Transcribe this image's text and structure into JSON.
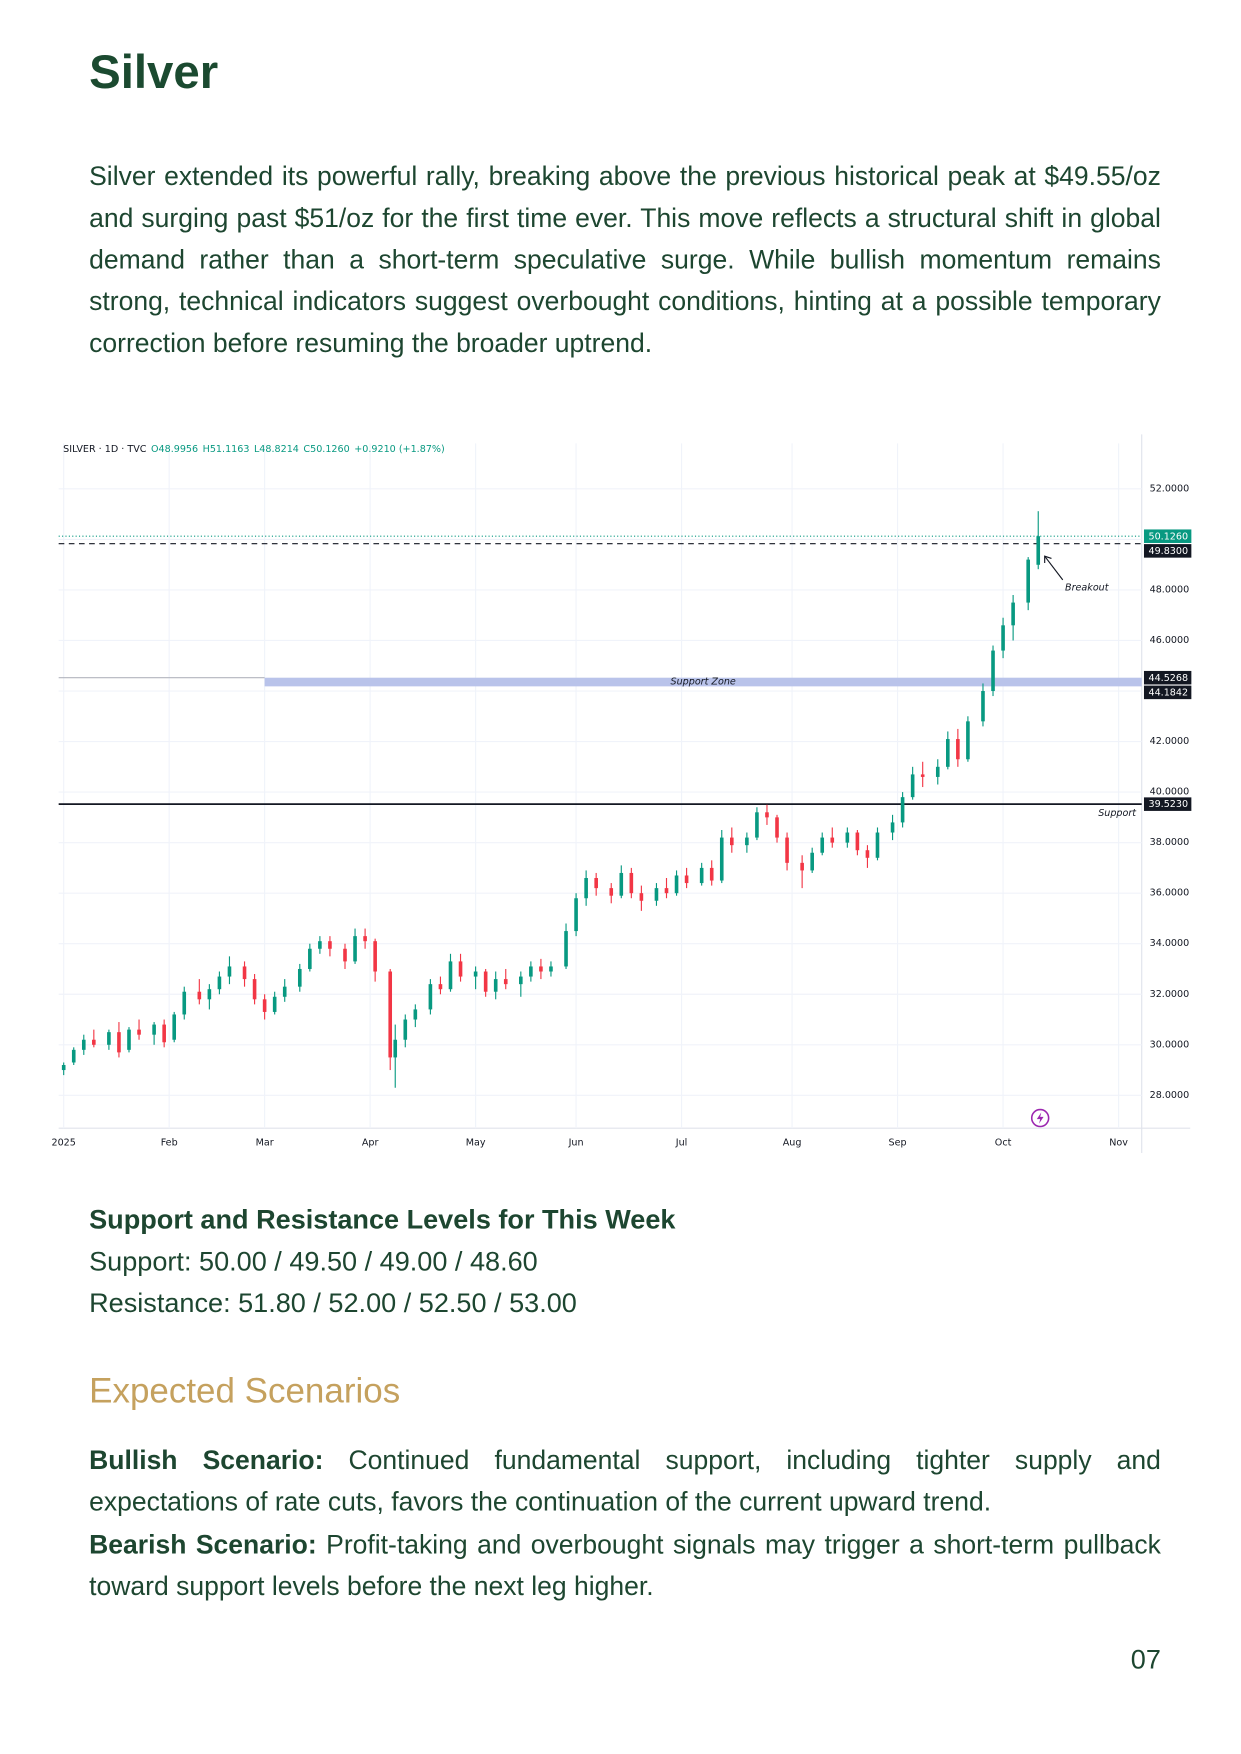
{
  "title": "Silver",
  "paragraph": "Silver extended its powerful rally, breaking above the previous historical peak at $49.55/oz and surging past $51/oz for the first time ever. This move reflects a structural shift in global demand rather than a short-term speculative surge. While bullish momentum remains strong, technical indicators suggest overbought conditions, hinting at a possible temporary correction before resuming the broader uptrend.",
  "chart_data": {
    "type": "candlestick",
    "symbol": "SILVER · 1D · TVC",
    "header_values": [
      "O48.9956",
      "H51.1163",
      "L48.8214",
      "C50.1260",
      "+0.9210 (+1.87%)"
    ],
    "up_color": "#089981",
    "down_color": "#f23645",
    "grid": true,
    "xlim": [
      -1,
      214.6
    ],
    "ylim": [
      26.7,
      53.8
    ],
    "xticks": [
      {
        "value": 0,
        "label": "2025"
      },
      {
        "value": 21,
        "label": "Feb"
      },
      {
        "value": 40,
        "label": "Mar"
      },
      {
        "value": 61,
        "label": "Apr"
      },
      {
        "value": 82,
        "label": "May"
      },
      {
        "value": 102,
        "label": "Jun"
      },
      {
        "value": 123,
        "label": "Jul"
      },
      {
        "value": 145,
        "label": "Aug"
      },
      {
        "value": 166,
        "label": "Sep"
      },
      {
        "value": 187,
        "label": "Oct"
      },
      {
        "value": 210,
        "label": "Nov"
      }
    ],
    "yticks": [
      {
        "value": 28,
        "label": "28.0000"
      },
      {
        "value": 30,
        "label": "30.0000"
      },
      {
        "value": 32,
        "label": "32.0000"
      },
      {
        "value": 34,
        "label": "34.0000"
      },
      {
        "value": 36,
        "label": "36.0000"
      },
      {
        "value": 38,
        "label": "38.0000"
      },
      {
        "value": 40,
        "label": "40.0000"
      },
      {
        "value": 42,
        "label": "42.0000"
      },
      {
        "value": 44,
        "label": "44.0000"
      },
      {
        "value": 46,
        "label": "46.0000"
      },
      {
        "value": 48,
        "label": "48.0000"
      },
      {
        "value": 50,
        "label": "50.0000"
      },
      {
        "value": 52,
        "label": "52.0000"
      }
    ],
    "x": [
      0,
      2,
      4,
      6,
      9,
      11,
      13,
      15,
      18,
      20,
      22,
      24,
      27,
      29,
      31,
      33,
      36,
      38,
      40,
      42,
      44,
      47,
      49,
      51,
      53,
      56,
      58,
      60,
      62,
      65,
      66,
      68,
      70,
      73,
      75,
      77,
      79,
      82,
      84,
      86,
      88,
      91,
      93,
      95,
      97,
      100,
      102,
      104,
      106,
      109,
      111,
      113,
      115,
      118,
      120,
      122,
      124,
      127,
      129,
      131,
      133,
      136,
      138,
      140,
      142,
      144,
      147,
      149,
      151,
      153,
      156,
      158,
      160,
      162,
      165,
      167,
      169,
      171,
      174,
      176,
      178,
      180,
      183,
      185,
      187,
      189,
      192,
      194
    ],
    "open": [
      29.0,
      29.3,
      29.8,
      30.2,
      30.0,
      30.5,
      29.8,
      30.6,
      30.4,
      30.8,
      30.2,
      31.2,
      32.1,
      31.8,
      32.2,
      32.7,
      33.1,
      32.6,
      31.8,
      31.3,
      31.9,
      32.3,
      33.0,
      33.8,
      34.1,
      33.8,
      33.3,
      34.3,
      34.1,
      32.9,
      29.5,
      30.2,
      31.0,
      31.4,
      32.4,
      32.2,
      33.3,
      32.7,
      32.9,
      32.1,
      32.6,
      32.4,
      32.7,
      33.1,
      32.9,
      33.1,
      34.5,
      35.8,
      36.6,
      36.2,
      35.9,
      36.8,
      36.0,
      35.7,
      36.2,
      36.0,
      36.7,
      36.4,
      37.0,
      36.5,
      38.2,
      37.9,
      38.2,
      39.2,
      39.0,
      38.2,
      37.2,
      36.9,
      37.6,
      38.2,
      38.0,
      38.4,
      37.7,
      37.4,
      38.4,
      38.8,
      39.8,
      40.7,
      40.6,
      41.0,
      42.1,
      41.3,
      42.8,
      44.0,
      45.6,
      46.6,
      47.5,
      48.9956
    ],
    "high": [
      29.3,
      29.9,
      30.4,
      30.6,
      30.6,
      30.9,
      30.7,
      31.0,
      30.9,
      31.0,
      31.3,
      32.3,
      32.6,
      32.4,
      32.9,
      33.5,
      33.3,
      32.8,
      32.0,
      32.1,
      32.6,
      33.2,
      34.0,
      34.3,
      34.3,
      34.0,
      34.6,
      34.6,
      34.2,
      33.0,
      30.8,
      31.2,
      31.6,
      32.6,
      32.7,
      33.6,
      33.6,
      33.1,
      33.0,
      32.9,
      33.0,
      32.9,
      33.3,
      33.4,
      33.3,
      34.8,
      36.0,
      36.9,
      36.8,
      36.4,
      37.1,
      37.0,
      36.3,
      36.4,
      36.6,
      36.9,
      37.0,
      37.2,
      37.3,
      38.5,
      38.6,
      38.4,
      39.4,
      39.5,
      39.1,
      38.4,
      37.5,
      37.8,
      38.4,
      38.6,
      38.6,
      38.5,
      37.9,
      38.6,
      39.1,
      40.0,
      41.0,
      41.2,
      41.3,
      42.4,
      42.5,
      43.0,
      44.3,
      45.8,
      46.9,
      47.8,
      49.3,
      51.1163
    ],
    "low": [
      28.8,
      29.2,
      29.6,
      29.9,
      29.8,
      29.5,
      29.7,
      30.2,
      30.0,
      29.9,
      30.1,
      31.0,
      31.6,
      31.4,
      32.0,
      32.4,
      32.3,
      31.6,
      31.0,
      31.2,
      31.7,
      32.1,
      32.9,
      33.6,
      33.5,
      33.0,
      33.2,
      33.8,
      32.5,
      29.0,
      28.3,
      29.9,
      30.7,
      31.2,
      32.0,
      32.1,
      32.5,
      32.2,
      31.9,
      31.8,
      32.2,
      31.9,
      32.5,
      32.6,
      32.7,
      33.0,
      34.3,
      35.5,
      35.9,
      35.6,
      35.8,
      35.8,
      35.3,
      35.5,
      35.8,
      35.9,
      36.2,
      36.3,
      36.3,
      36.4,
      37.6,
      37.6,
      38.1,
      38.7,
      38.0,
      36.9,
      36.2,
      36.8,
      37.5,
      37.8,
      37.8,
      37.5,
      37.0,
      37.3,
      38.1,
      38.6,
      39.7,
      40.2,
      40.3,
      40.9,
      41.0,
      41.2,
      42.6,
      43.8,
      45.3,
      46.0,
      47.2,
      48.8214
    ],
    "close": [
      29.2,
      29.8,
      30.2,
      30.0,
      30.5,
      29.7,
      30.6,
      30.4,
      30.8,
      30.1,
      31.2,
      32.1,
      31.8,
      32.2,
      32.7,
      33.1,
      32.6,
      31.8,
      31.3,
      31.9,
      32.3,
      33.0,
      33.8,
      34.1,
      33.8,
      33.3,
      34.3,
      34.1,
      32.9,
      29.5,
      30.2,
      31.0,
      31.4,
      32.4,
      32.2,
      33.3,
      32.7,
      32.9,
      32.1,
      32.6,
      32.4,
      32.7,
      33.1,
      32.9,
      33.1,
      34.5,
      35.8,
      36.6,
      36.2,
      35.9,
      36.8,
      36.0,
      35.7,
      36.2,
      36.0,
      36.7,
      36.4,
      37.0,
      36.5,
      38.2,
      37.9,
      38.2,
      39.2,
      39.0,
      38.2,
      37.2,
      36.9,
      37.6,
      38.2,
      38.0,
      38.4,
      37.7,
      37.4,
      38.4,
      38.8,
      39.8,
      40.7,
      40.6,
      41.0,
      42.1,
      41.3,
      42.8,
      44.0,
      45.6,
      46.6,
      47.5,
      49.2,
      50.126
    ],
    "levels": [
      {
        "value": 50.126,
        "label": "50.1260",
        "color": "#089981",
        "style": "dotted"
      },
      {
        "value": 49.83,
        "label": "49.8300",
        "color": "#131722",
        "style": "dashed"
      },
      {
        "value": 39.523,
        "label": "39.5230",
        "color": "#131722",
        "style": "solid"
      }
    ],
    "zone": {
      "x_start": 40,
      "low": 44.1842,
      "high": 44.5268,
      "low_label": "44.1842",
      "high_label": "44.5268",
      "label": "Support Zone",
      "color": "#b9c3ea"
    },
    "annotations": [
      "Breakout",
      "Support"
    ]
  },
  "levels": {
    "heading": "Support and Resistance Levels for This Week",
    "support": "Support: 50.00 / 49.50 / 49.00 / 48.60",
    "resistance": "Resistance: 51.80 / 52.00 / 52.50 / 53.00"
  },
  "scenarios": {
    "heading": "Expected Scenarios",
    "items": [
      {
        "label": "Bullish Scenario:",
        "text": "Continued fundamental support, including tighter supply and expectations of rate cuts, favors the continuation of the current upward trend."
      },
      {
        "label": "Bearish Scenario:",
        "text": "Profit-taking and overbought signals may trigger a short-term pullback toward support levels before the next leg higher."
      }
    ]
  },
  "page_number": "07"
}
